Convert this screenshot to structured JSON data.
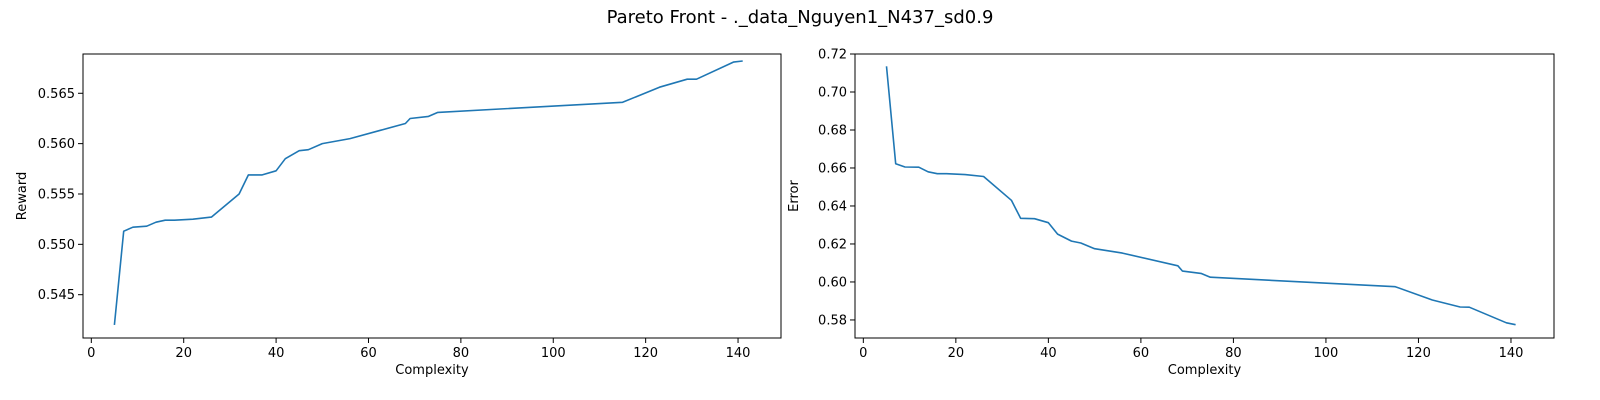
{
  "figure": {
    "title": "Pareto Front - ._data_Nguyen1_N437_sd0.9"
  },
  "chart_data": [
    {
      "type": "line",
      "title": "",
      "xlabel": "Complexity",
      "ylabel": "Reward",
      "xlim": [
        -1.8,
        149.3
      ],
      "ylim": [
        0.5407,
        0.5689
      ],
      "xticks": [
        0,
        20,
        40,
        60,
        80,
        100,
        120,
        140
      ],
      "yticks": [
        0.545,
        0.55,
        0.555,
        0.56,
        0.565
      ],
      "ytick_labels": [
        "0.545",
        "0.550",
        "0.555",
        "0.560",
        "0.565"
      ],
      "grid": false,
      "series": [
        {
          "color": "#1f77b4",
          "x": [
            5,
            7,
            9,
            12,
            14,
            16,
            18,
            22,
            26,
            32,
            34,
            37,
            40,
            42,
            45,
            47,
            50,
            56,
            68,
            69,
            73,
            75,
            115,
            123,
            129,
            131,
            139,
            141
          ],
          "y": [
            0.542,
            0.5513,
            0.5517,
            0.5518,
            0.5522,
            0.5524,
            0.5524,
            0.5525,
            0.5527,
            0.555,
            0.5569,
            0.5569,
            0.5573,
            0.5585,
            0.5593,
            0.5594,
            0.56,
            0.5605,
            0.562,
            0.5625,
            0.5627,
            0.5631,
            0.5641,
            0.5656,
            0.5664,
            0.5664,
            0.5681,
            0.5682
          ]
        }
      ]
    },
    {
      "type": "line",
      "title": "",
      "xlabel": "Complexity",
      "ylabel": "Error",
      "xlim": [
        -1.8,
        149.3
      ],
      "ylim": [
        0.5705,
        0.72
      ],
      "xticks": [
        0,
        20,
        40,
        60,
        80,
        100,
        120,
        140
      ],
      "yticks": [
        0.58,
        0.6,
        0.62,
        0.64,
        0.66,
        0.68,
        0.7,
        0.72
      ],
      "ytick_labels": [
        "0.58",
        "0.60",
        "0.62",
        "0.64",
        "0.66",
        "0.68",
        "0.70",
        "0.72"
      ],
      "grid": false,
      "series": [
        {
          "color": "#1f77b4",
          "x": [
            5,
            7,
            9,
            12,
            14,
            16,
            18,
            22,
            26,
            32,
            34,
            37,
            40,
            42,
            45,
            47,
            50,
            56,
            68,
            69,
            73,
            75,
            115,
            123,
            129,
            131,
            139,
            141
          ],
          "y": [
            0.7135,
            0.6622,
            0.6605,
            0.6604,
            0.658,
            0.657,
            0.657,
            0.6565,
            0.6555,
            0.643,
            0.6335,
            0.6333,
            0.6312,
            0.6252,
            0.6215,
            0.6205,
            0.6175,
            0.6152,
            0.6085,
            0.6057,
            0.6045,
            0.6025,
            0.5975,
            0.5905,
            0.5868,
            0.5867,
            0.5785,
            0.5775
          ]
        }
      ]
    }
  ]
}
